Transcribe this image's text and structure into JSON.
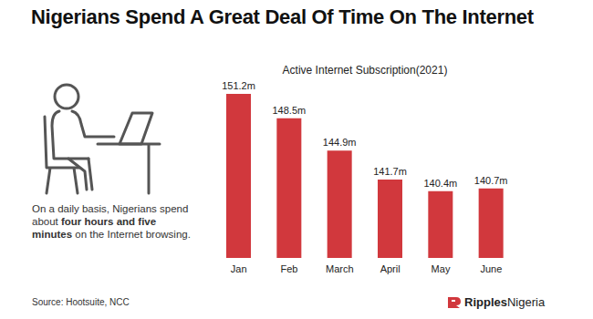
{
  "chart_data": {
    "type": "bar",
    "title": "Nigerians Spend A Great Deal Of Time On The Internet",
    "subtitle": "Active Internet Subscription(2021)",
    "categories": [
      "Jan",
      "Feb",
      "March",
      "April",
      "May",
      "June"
    ],
    "values": [
      151.2,
      148.5,
      144.9,
      141.7,
      140.4,
      140.7
    ],
    "value_labels": [
      "151.2m",
      "148.5m",
      "144.9m",
      "141.7m",
      "140.4m",
      "140.7m"
    ],
    "color": "#d1383d",
    "ylim": [
      133,
      152
    ],
    "data_labels": true,
    "tick_labels": "x",
    "grid": false,
    "annotations": [
      {
        "before": "On a daily basis, Nigerians spend about ",
        "bold": "four hours and five minutes",
        "after": " on the Internet browsing."
      }
    ],
    "source": "Source: Hootsuite, NCC",
    "logo": [
      "Ripples",
      "Nigeria"
    ]
  }
}
